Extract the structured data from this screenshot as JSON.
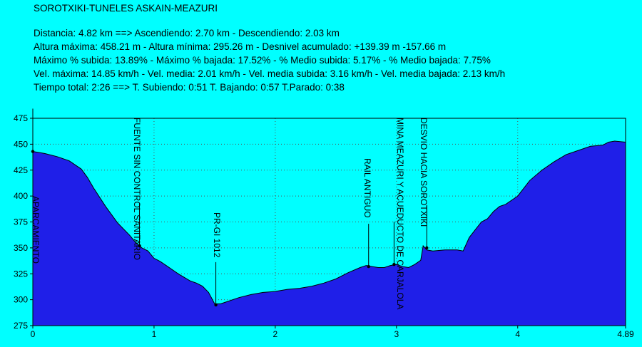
{
  "header": {
    "title": "SOROTXIKI-TUNELES ASKAIN-MEAZURI",
    "lines": [
      "Distancia: 4.82 km    ==>    Ascendiendo: 2.70 km - Descendiendo: 2.03 km",
      "Altura máxima: 458.21 m - Altura mínima: 295.26 m - Desnivel acumulado: +139.39 m  -157.66 m",
      "Máximo % subida: 13.89%  - Máximo % bajada: 17.52%  - % Medio subida: 5.17%  - % Medio bajada: 7.75%",
      "Vel. máxima: 14.85 km/h - Vel. media: 2.01 km/h - Vel. media subida: 3.16 km/h - Vel. media bajada: 2.13 km/h",
      "Tiempo total: 2:26    ==>    T. Subiendo: 0:51  T. Bajando: 0:57  T.Parado: 0:38"
    ]
  },
  "colors": {
    "background": "#00ffff",
    "fill": "#1f1fe8",
    "profile_line": "#000000",
    "grid": "#555555"
  },
  "chart_data": {
    "type": "area",
    "title": "",
    "xlabel": "",
    "ylabel": "",
    "xlim": [
      0,
      4.89
    ],
    "ylim": [
      275,
      475
    ],
    "x_ticks": [
      "0",
      "1",
      "2",
      "3",
      "4",
      "4.89"
    ],
    "x_tick_values": [
      0,
      1,
      2,
      3,
      4,
      4.89
    ],
    "y_ticks": [
      "275",
      "300",
      "325",
      "350",
      "375",
      "400",
      "425",
      "450",
      "475"
    ],
    "y_tick_values": [
      275,
      300,
      325,
      350,
      375,
      400,
      425,
      450,
      475
    ],
    "grid": true,
    "series": [
      {
        "x": [
          0,
          0.05,
          0.1,
          0.2,
          0.3,
          0.4,
          0.45,
          0.5,
          0.6,
          0.7,
          0.8,
          0.85,
          0.9,
          0.95,
          1.0,
          1.05,
          1.1,
          1.2,
          1.3,
          1.35,
          1.4,
          1.45,
          1.5,
          1.55,
          1.6,
          1.7,
          1.8,
          1.9,
          2.0,
          2.1,
          2.2,
          2.3,
          2.4,
          2.5,
          2.6,
          2.7,
          2.75,
          2.8,
          2.85,
          2.9,
          2.95,
          3.0,
          3.05,
          3.1,
          3.15,
          3.2,
          3.22,
          3.25,
          3.3,
          3.4,
          3.5,
          3.55,
          3.6,
          3.7,
          3.75,
          3.8,
          3.85,
          3.9,
          4.0,
          4.1,
          4.2,
          4.3,
          4.4,
          4.5,
          4.6,
          4.7,
          4.75,
          4.8,
          4.89
        ],
        "y": [
          443,
          442,
          441,
          438,
          434,
          426,
          418,
          408,
          390,
          374,
          362,
          355,
          350,
          347,
          340,
          337,
          333,
          325,
          318,
          316,
          313,
          307,
          296,
          296,
          298,
          302,
          305,
          307,
          308,
          310,
          311,
          313,
          316,
          320,
          326,
          331,
          333,
          332,
          331,
          331,
          333,
          334,
          332,
          331,
          334,
          338,
          352,
          348,
          347,
          348,
          348,
          347,
          360,
          375,
          378,
          385,
          390,
          392,
          400,
          415,
          425,
          433,
          440,
          444,
          448,
          449,
          452,
          453,
          452
        ]
      }
    ],
    "annotations": [
      {
        "label": "APARCAMIENTO",
        "x": 0.0,
        "y": 443
      },
      {
        "label": "FUENTE SIN CONTROL SANITARIO",
        "x": 0.88,
        "y": 352
      },
      {
        "label": "PR-GI 1012",
        "x": 1.51,
        "y": 295
      },
      {
        "label": "RAIL ANTIGUO",
        "x": 2.77,
        "y": 332
      },
      {
        "label": "MINA MEAZURI Y ACUEDUCTO DE CARJALOLA",
        "x": 2.98,
        "y": 334
      },
      {
        "label": "DESVIO HACIA SOROTXIKI",
        "x": 3.25,
        "y": 350
      }
    ]
  }
}
